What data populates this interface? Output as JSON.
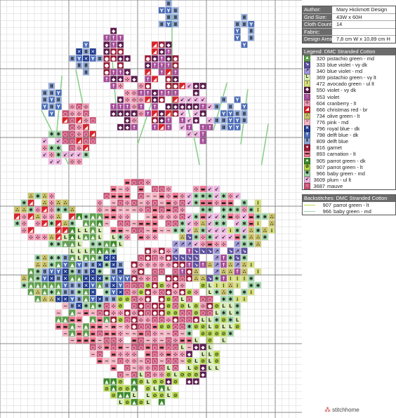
{
  "info": [
    {
      "key": "Author:",
      "value": "Mary Hickmott Design"
    },
    {
      "key": "Grid Size:",
      "value": "43W x 60H"
    },
    {
      "key": "Cloth Count:",
      "value": "14"
    },
    {
      "key": "Fabric:",
      "value": ""
    },
    {
      "key": "Design Area:",
      "value": "7,8 cm W  x  10,89 cm H"
    }
  ],
  "legend_title": "Legend: DMC Stranded Cotton",
  "legend": [
    {
      "code": "320",
      "name": "pistachio green - md",
      "color": "#5fa04d",
      "sym": "▲",
      "fg": "#ffffff"
    },
    {
      "code": "333",
      "name": "blue violet - vy dk",
      "color": "#5d4f9e",
      "sym": "↘",
      "fg": "#ffffff"
    },
    {
      "code": "340",
      "name": "blue violet - md",
      "color": "#a29ad8",
      "sym": "↗",
      "fg": "#222"
    },
    {
      "code": "369",
      "name": "pistachio green - vy lt",
      "color": "#d9efb4",
      "sym": "L",
      "fg": "#222"
    },
    {
      "code": "472",
      "name": "avocado green - ul lt",
      "color": "#d6e07a",
      "sym": "⁝",
      "fg": "#222"
    },
    {
      "code": "550",
      "name": "violet - vy dk",
      "color": "#5c1b4e",
      "sym": "◆",
      "fg": "#ffffff"
    },
    {
      "code": "553",
      "name": "violet",
      "color": "#a74d99",
      "sym": "↑",
      "fg": "#ffffff"
    },
    {
      "code": "604",
      "name": "cranberry - lt",
      "color": "#f39ab6",
      "sym": "⊹",
      "fg": "#222"
    },
    {
      "code": "666",
      "name": "christmas red - br",
      "color": "#d8232a",
      "sym": "◢",
      "fg": "#ffffff"
    },
    {
      "code": "734",
      "name": "olive green - lt",
      "color": "#cbc36a",
      "sym": "∴",
      "fg": "#222"
    },
    {
      "code": "776",
      "name": "pink - md",
      "color": "#f5b5c4",
      "sym": "~",
      "fg": "#222"
    },
    {
      "code": "796",
      "name": "royal blue - dk",
      "color": "#1f3a8f",
      "sym": "✕",
      "fg": "#ffffff"
    },
    {
      "code": "798",
      "name": "delft blue - dk",
      "color": "#4a6cb8",
      "sym": "Y",
      "fg": "#ffffff"
    },
    {
      "code": "809",
      "name": "delft blue",
      "color": "#8fa9d8",
      "sym": "Ⅱ",
      "fg": "#222"
    },
    {
      "code": "816",
      "name": "garnet",
      "color": "#9a1b38",
      "sym": "●",
      "fg": "#ffffff"
    },
    {
      "code": "893",
      "name": "carnation - lt",
      "color": "#f07890",
      "sym": "▬",
      "fg": "#222"
    },
    {
      "code": "905",
      "name": "parrot green - dk",
      "color": "#3c8a2a",
      "sym": "▲",
      "fg": "#ffffff"
    },
    {
      "code": "907",
      "name": "parrot green - lt",
      "color": "#b6d94a",
      "sym": "⊘",
      "fg": "#222"
    },
    {
      "code": "966",
      "name": "baby green - md",
      "color": "#9fd6a8",
      "sym": "✱",
      "fg": "#222"
    },
    {
      "code": "3609",
      "name": "plum - ul lt",
      "color": "#f0b7e3",
      "sym": "↙",
      "fg": "#222"
    },
    {
      "code": "3687",
      "name": "mauve",
      "color": "#c95478",
      "sym": "○",
      "fg": "#ffffff"
    }
  ],
  "backstitch_title": "Backstitches: DMC Stranded Cotton",
  "backstitch": [
    {
      "code": "907",
      "name": "parrot green - lt",
      "color": "#b6d94a"
    },
    {
      "code": "966",
      "name": "baby green - md",
      "color": "#9fd6a8"
    }
  ],
  "brand": "stitchhome",
  "colors": {
    "grid_line": "#d4d4d4",
    "major_line": "#8a8a8a",
    "stem": "#8ccf8c"
  }
}
